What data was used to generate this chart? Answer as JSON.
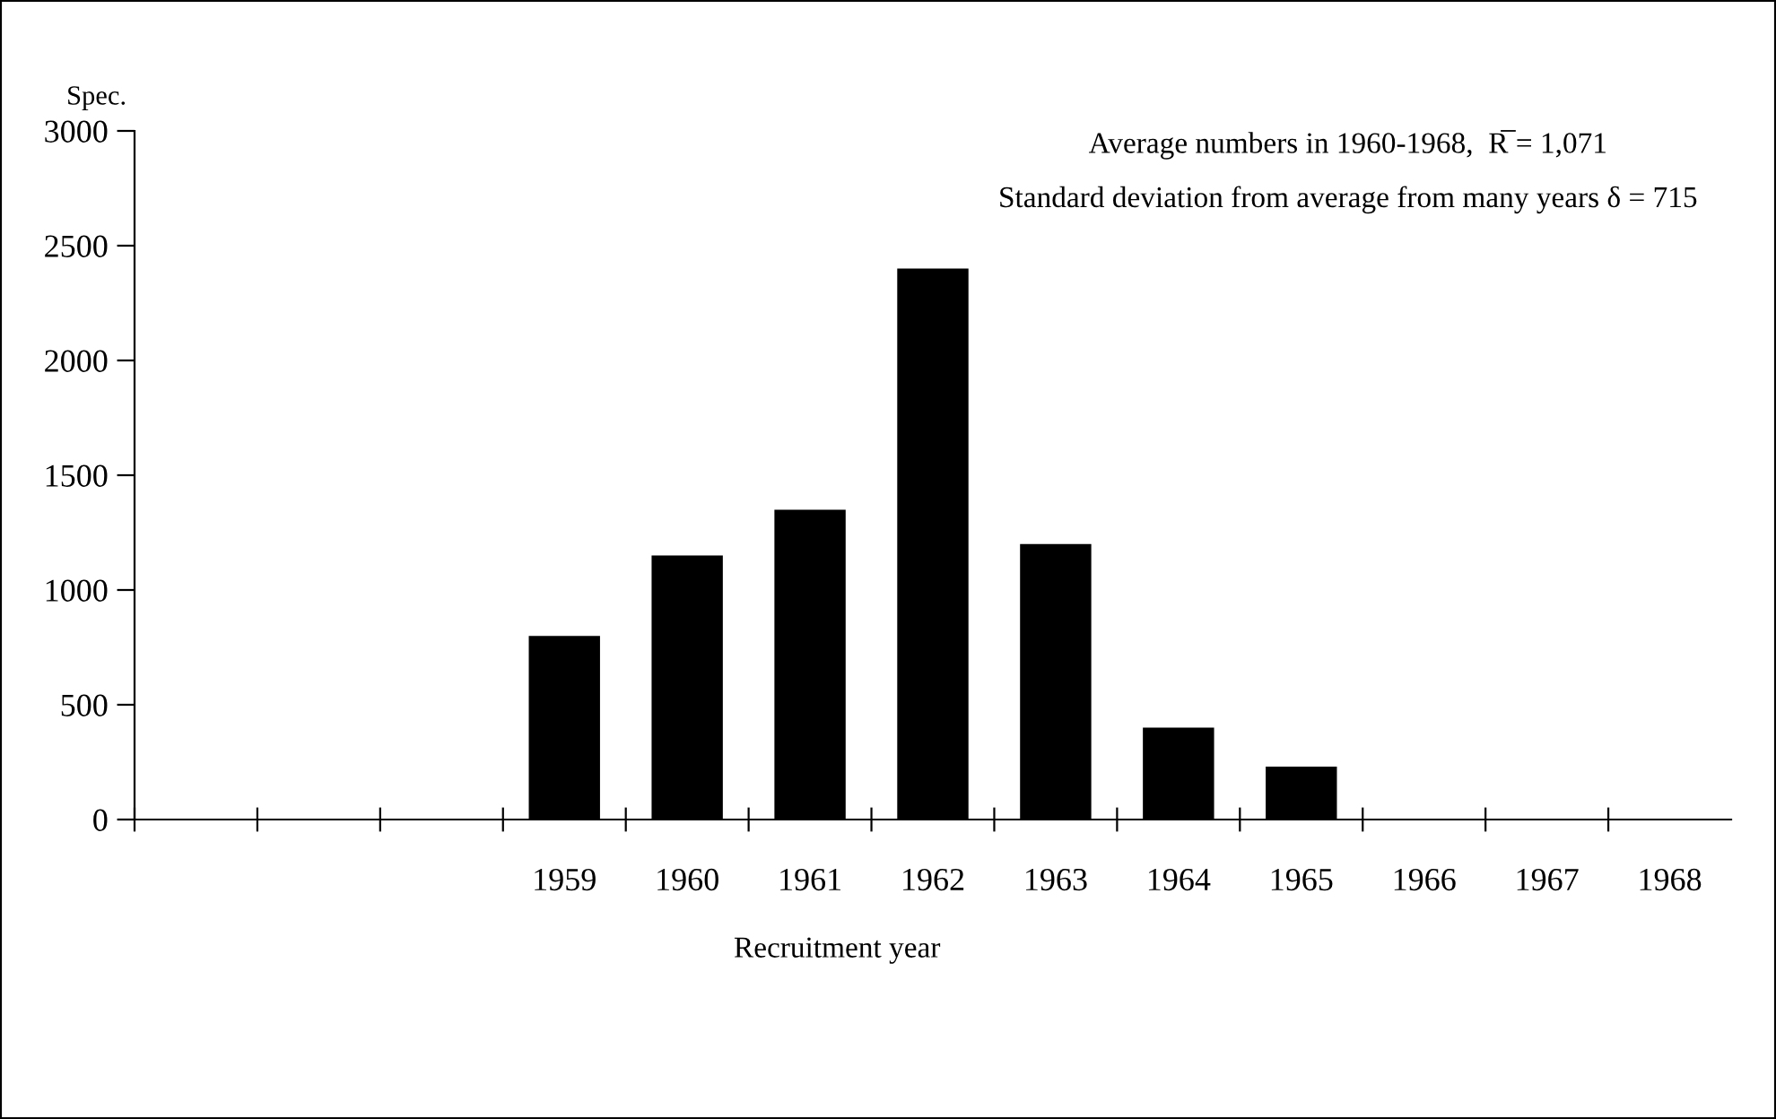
{
  "chart_data": {
    "type": "bar",
    "ylabel": "Spec.",
    "xlabel": "Recruitment year",
    "categories": [
      null,
      null,
      null,
      "1959",
      "1960",
      "1961",
      "1962",
      "1963",
      "1964",
      "1965",
      "1966",
      "1967",
      "1968"
    ],
    "values": [
      null,
      null,
      null,
      800,
      1150,
      1350,
      2400,
      1200,
      400,
      230,
      null,
      null,
      null
    ],
    "color": "#000000",
    "ylim": [
      0,
      3000
    ],
    "yticks": [
      0,
      500,
      1000,
      1500,
      2000,
      2500,
      3000
    ],
    "grid": false,
    "annotations": [
      "Average numbers in 1960-1968,  R̅ = 1,071",
      "Standard deviation from average from many years δ = 715"
    ]
  }
}
